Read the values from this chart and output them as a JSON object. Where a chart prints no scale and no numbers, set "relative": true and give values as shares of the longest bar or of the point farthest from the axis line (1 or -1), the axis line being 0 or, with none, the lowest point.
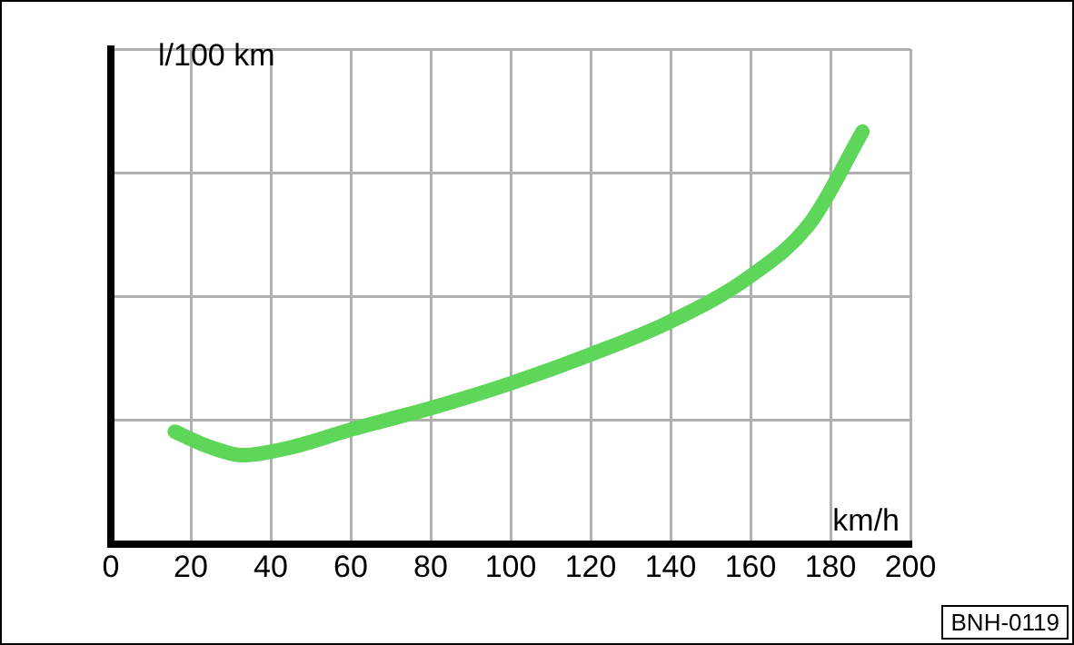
{
  "chart_data": {
    "type": "line",
    "relative": true,
    "xlabel": "km/h",
    "ylabel": "l/100 km",
    "xlim": [
      0,
      200
    ],
    "xticks": [
      0,
      20,
      40,
      60,
      80,
      100,
      120,
      140,
      160,
      180,
      200
    ],
    "grid": true,
    "legend": false,
    "marker": "none",
    "line_style": "solid",
    "annotations": [
      "BNH-0119"
    ],
    "series": [
      {
        "color": "#5dd65a",
        "x": [
          16,
          25,
          33,
          45,
          60,
          80,
          100,
          120,
          140,
          160,
          175,
          188
        ],
        "values": [
          0.273,
          0.235,
          0.216,
          0.235,
          0.278,
          0.33,
          0.39,
          0.46,
          0.54,
          0.65,
          0.78,
          1
        ]
      }
    ]
  }
}
